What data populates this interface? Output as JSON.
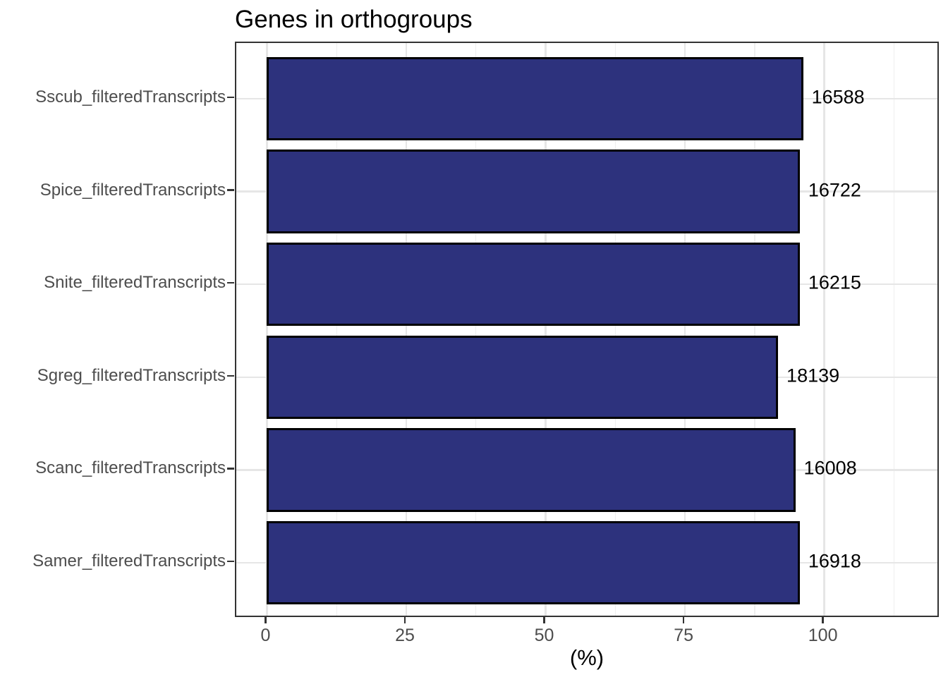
{
  "chart_data": {
    "type": "bar",
    "orientation": "horizontal",
    "title": "Genes in orthogroups",
    "xlabel": "(%)",
    "ylabel": "",
    "categories": [
      "Sscub_filteredTranscripts",
      "Spice_filteredTranscripts",
      "Snite_filteredTranscripts",
      "Sgreg_filteredTranscripts",
      "Scanc_filteredTranscripts",
      "Samer_filteredTranscripts"
    ],
    "values": [
      96.2,
      95.6,
      95.6,
      91.7,
      94.8,
      95.6
    ],
    "bar_labels": [
      "16588",
      "16722",
      "16215",
      "18139",
      "16008",
      "16918"
    ],
    "xticks": [
      0,
      25,
      50,
      75,
      100
    ],
    "xticks_minor": [
      12.5,
      37.5,
      62.5,
      87.5,
      112.5
    ],
    "xlim": [
      -5.5,
      120.8
    ],
    "grid": true,
    "legend": false,
    "colors": {
      "bar_fill": "#2d327d",
      "bar_stroke": "#000000",
      "grid_major": "#e6e6e6",
      "grid_minor": "#efefef",
      "panel_border": "#333333",
      "axis_text": "#4d4d4d",
      "tick_mark": "#333333",
      "title_text": "#000000",
      "label_text": "#000000",
      "background": "#ffffff"
    }
  }
}
